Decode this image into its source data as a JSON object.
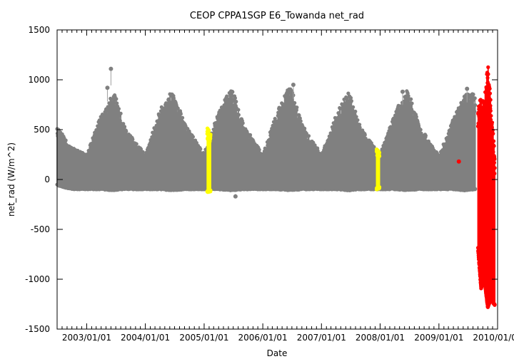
{
  "chart_data": {
    "type": "scatter",
    "title": "CEOP CPPA1SGP E6_Towanda  net_rad",
    "xlabel": "Date",
    "ylabel": "net_rad (W/m^2)",
    "ylim": [
      -1500,
      1500
    ],
    "xlim": [
      "2002-07-01",
      "2010-01-01"
    ],
    "x_tick_labels": [
      "2003/01/01",
      "2004/01/01",
      "2005/01/01",
      "2006/01/01",
      "2007/01/01",
      "2008/01/01",
      "2009/01/01",
      "2010/01/01"
    ],
    "y_ticks": [
      -1500,
      -1000,
      -500,
      0,
      500,
      1000,
      1500
    ],
    "grid": false,
    "legend": "none",
    "colors": {
      "normal": "#808080",
      "flag_yellow": "#ffff00",
      "flag_red": "#ff0000"
    },
    "series": [
      {
        "color": "#808080",
        "values_envelope": [
          [
            "2002-07-01",
            -60,
            540
          ],
          [
            "2002-10-01",
            -100,
            320
          ],
          [
            "2003-01-01",
            -100,
            250
          ],
          [
            "2003-04-01",
            -100,
            650
          ],
          [
            "2003-06-21",
            -110,
            880
          ],
          [
            "2003-09-01",
            -100,
            500
          ],
          [
            "2004-01-01",
            -100,
            250
          ],
          [
            "2004-04-01",
            -100,
            700
          ],
          [
            "2004-06-21",
            -110,
            920
          ],
          [
            "2004-09-01",
            -100,
            560
          ],
          [
            "2005-01-01",
            -100,
            260
          ],
          [
            "2005-04-01",
            -100,
            680
          ],
          [
            "2005-06-21",
            -110,
            930
          ],
          [
            "2005-09-01",
            -100,
            560
          ],
          [
            "2006-01-01",
            -100,
            250
          ],
          [
            "2006-04-01",
            -100,
            690
          ],
          [
            "2006-06-21",
            -110,
            950
          ],
          [
            "2006-09-01",
            -100,
            560
          ],
          [
            "2007-01-01",
            -100,
            250
          ],
          [
            "2007-04-01",
            -100,
            650
          ],
          [
            "2007-06-21",
            -110,
            900
          ],
          [
            "2007-09-01",
            -100,
            520
          ],
          [
            "2008-01-01",
            -100,
            250
          ],
          [
            "2008-04-01",
            -100,
            670
          ],
          [
            "2008-06-21",
            -110,
            920
          ],
          [
            "2008-09-01",
            -100,
            540
          ],
          [
            "2009-01-01",
            -100,
            240
          ],
          [
            "2009-04-01",
            -100,
            610
          ],
          [
            "2009-06-10",
            -110,
            880
          ],
          [
            "2009-08-15",
            -100,
            850
          ]
        ],
        "outliers": [
          [
            "2003-06-01",
            1110
          ],
          [
            "2003-05-10",
            920
          ],
          [
            "2005-07-15",
            -170
          ],
          [
            "2006-07-10",
            950
          ],
          [
            "2008-05-20",
            880
          ],
          [
            "2009-06-25",
            910
          ]
        ]
      },
      {
        "color": "#ffff00",
        "range": [
          [
            "2005-01-20",
            -130,
            520
          ],
          [
            "2005-02-10",
            -120,
            470
          ]
        ]
      },
      {
        "color": "#ffff00",
        "range": [
          [
            "2007-12-10",
            -100,
            310
          ],
          [
            "2007-12-28",
            -90,
            270
          ]
        ]
      },
      {
        "color": "#ff0000",
        "isolated": [
          [
            "2009-05-05",
            180
          ]
        ],
        "range": [
          [
            "2009-09-01",
            -700,
            720
          ],
          [
            "2009-09-20",
            -1100,
            860
          ],
          [
            "2009-10-10",
            -1000,
            780
          ],
          [
            "2009-11-01",
            -1290,
            1170
          ],
          [
            "2009-11-20",
            -1200,
            800
          ],
          [
            "2009-12-15",
            -1270,
            250
          ]
        ]
      }
    ]
  }
}
